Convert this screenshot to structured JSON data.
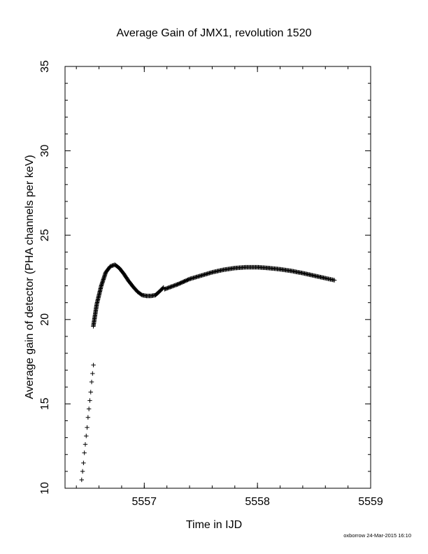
{
  "chart_data": {
    "type": "scatter",
    "title": "Average Gain of JMX1, revolution 1520",
    "xlabel": "Time in IJD",
    "ylabel": "Average gain of detector (PHA channels per keV)",
    "xlim": [
      5556.3,
      5559
    ],
    "ylim": [
      10,
      35
    ],
    "xticks": [
      5557,
      5558,
      5559
    ],
    "yticks": [
      10,
      15,
      20,
      25,
      30,
      35
    ],
    "marker": "+",
    "grid": false,
    "series": [
      {
        "x": [
          5556.447,
          5556.455,
          5556.463,
          5556.471,
          5556.479,
          5556.487,
          5556.495,
          5556.503,
          5556.511,
          5556.519,
          5556.527,
          5556.535,
          5556.543,
          5556.551
        ],
        "y": [
          10.5,
          11.0,
          11.5,
          12.1,
          12.6,
          13.1,
          13.6,
          14.2,
          14.7,
          15.2,
          15.7,
          16.3,
          16.8,
          17.3
        ]
      },
      {
        "x": [
          5556.55,
          5556.58,
          5556.62,
          5556.66,
          5556.7,
          5556.74,
          5556.78,
          5556.82,
          5556.86,
          5556.9,
          5556.94,
          5556.98,
          5557.02,
          5557.06,
          5557.1,
          5557.14,
          5557.17
        ],
        "y": [
          19.6,
          20.9,
          22.0,
          22.8,
          23.15,
          23.25,
          23.05,
          22.7,
          22.3,
          21.95,
          21.65,
          21.45,
          21.4,
          21.4,
          21.45,
          21.7,
          21.9
        ]
      },
      {
        "x": [
          5557.18,
          5557.3,
          5557.4,
          5557.5,
          5557.6,
          5557.7,
          5557.8,
          5557.9,
          5558.0,
          5558.1,
          5558.2,
          5558.3,
          5558.4,
          5558.5,
          5558.6,
          5558.68
        ],
        "y": [
          21.8,
          22.1,
          22.4,
          22.6,
          22.8,
          22.95,
          23.05,
          23.1,
          23.1,
          23.05,
          22.98,
          22.88,
          22.75,
          22.6,
          22.45,
          22.33
        ]
      }
    ]
  },
  "footer": {
    "stamp": "oxborrow 24-Mar-2015 16:10"
  }
}
